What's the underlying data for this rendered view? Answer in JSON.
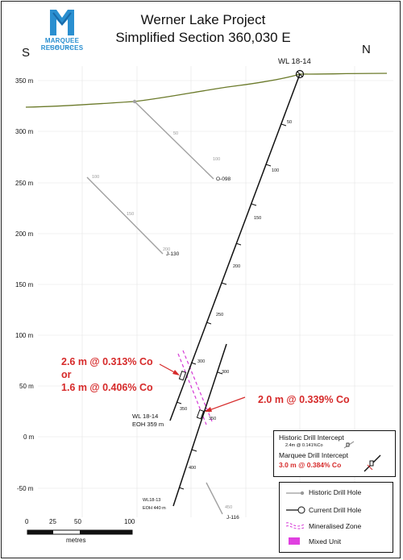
{
  "logo": {
    "company": "MARQUEE RESOURCES",
    "suffix": "LIMITED"
  },
  "title": {
    "line1": "Werner Lake Project",
    "line2": "Simplified Section 360,030 E"
  },
  "directions": {
    "south": "S",
    "north": "N"
  },
  "elevation_axis": [
    "350 m",
    "300 m",
    "250 m",
    "200 m",
    "150 m",
    "100 m",
    "50 m",
    "0 m",
    "-50 m"
  ],
  "drill_holes": {
    "wl1814": {
      "name": "WL 18-14",
      "depth_labels": [
        "50",
        "100",
        "150",
        "200",
        "250",
        "300",
        "350"
      ],
      "eoh_name": "WL 18-14",
      "eoh_depth": "EOH 359 m"
    },
    "wl1813": {
      "depth_labels": [
        "300",
        "350",
        "400"
      ],
      "eoh_name": "WL18-13",
      "eoh_depth": "EOH 440 m"
    },
    "o098": {
      "name": "O-098",
      "depth_labels": [
        "50",
        "100"
      ]
    },
    "j130": {
      "name": "J-130",
      "depth_labels": [
        "100",
        "150",
        "200"
      ]
    },
    "j116": {
      "name": "J-116",
      "depth_labels": [
        "450"
      ]
    }
  },
  "intercepts": {
    "upper_line1": "2.6 m @ 0.313% Co",
    "upper_or": "or",
    "upper_line2": "1.6 m @ 0.406% Co",
    "lower": "2.0 m @ 0.339% Co"
  },
  "intercept_key": {
    "historic_title": "Historic Drill Intercept",
    "historic_example": "2.4m @ 0.141%Co",
    "marquee_title": "Marquee Drill Intercept",
    "marquee_example": "3.0 m @ 0.384% Co"
  },
  "legend": {
    "historic": "Historic Drill Hole",
    "current": "Current Drill Hole",
    "mineralised": "Mineralised Zone",
    "mixed": "Mixed Unit"
  },
  "scale_bar": {
    "ticks": [
      "0",
      "25",
      "50",
      "100"
    ],
    "unit": "metres"
  },
  "colors": {
    "surface": "#6b7a2a",
    "historic": "#9a9a9a",
    "red": "#d62a2a",
    "magenta": "#d63ad6",
    "logo_blue": "#2a8fd0"
  }
}
